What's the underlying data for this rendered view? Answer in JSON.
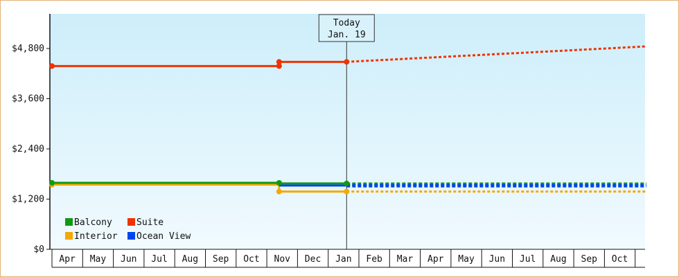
{
  "chart_data": {
    "type": "line",
    "ylim": [
      0,
      5760
    ],
    "yticks": [
      {
        "value": 0,
        "label": "$0"
      },
      {
        "value": 1200,
        "label": "$1,200"
      },
      {
        "value": 2400,
        "label": "$2,400"
      },
      {
        "value": 3600,
        "label": "$3,600"
      },
      {
        "value": 4800,
        "label": "$4,800"
      }
    ],
    "months": [
      "Apr",
      "May",
      "Jun",
      "Jul",
      "Aug",
      "Sep",
      "Oct",
      "Nov",
      "Dec",
      "Jan",
      "Feb",
      "Mar",
      "Apr",
      "May",
      "Jun",
      "Jul",
      "Aug",
      "Sep",
      "Oct"
    ],
    "today": {
      "line1": "Today",
      "line2": "Jan. 19",
      "month_index": 9.6
    },
    "grid": false,
    "legend_position": "bottom-left",
    "series": [
      {
        "name": "Balcony",
        "color": "#119911",
        "points": [
          {
            "m": 0,
            "v": 1590
          },
          {
            "m": 7.4,
            "v": 1590
          },
          {
            "m": 7.4,
            "v": 1575
          },
          {
            "m": 9.6,
            "v": 1575
          }
        ],
        "markers": [
          0,
          7.4,
          9.6
        ],
        "projection": [
          {
            "m": 9.6,
            "v": 1555
          },
          {
            "m": 19.5,
            "v": 1555
          }
        ],
        "proj_style": "thick"
      },
      {
        "name": "Suite",
        "color": "#ee3300",
        "points": [
          {
            "m": 0,
            "v": 4380
          },
          {
            "m": 7.4,
            "v": 4380
          },
          {
            "m": 7.4,
            "v": 4480
          },
          {
            "m": 9.6,
            "v": 4480
          }
        ],
        "markers": [
          0,
          7.4,
          7.4,
          9.6
        ],
        "marker_values": [
          4380,
          4380,
          4480,
          4480
        ],
        "projection": [
          {
            "m": 9.6,
            "v": 4480
          },
          {
            "m": 19.5,
            "v": 4850
          }
        ],
        "proj_style": "thin"
      },
      {
        "name": "Interior",
        "color": "#f5a800",
        "points": [
          {
            "m": 0,
            "v": 1545
          },
          {
            "m": 7.4,
            "v": 1545
          },
          {
            "m": 7.4,
            "v": 1380
          },
          {
            "m": 9.6,
            "v": 1380
          }
        ],
        "markers": [
          0,
          7.4,
          9.6
        ],
        "marker_values": [
          1545,
          1380,
          1380
        ],
        "projection": [
          {
            "m": 9.6,
            "v": 1380
          },
          {
            "m": 19.5,
            "v": 1380
          }
        ],
        "proj_style": "thin"
      },
      {
        "name": "Ocean View",
        "color": "#0044ee",
        "points": [
          {
            "m": 7.4,
            "v": 1525
          },
          {
            "m": 9.6,
            "v": 1525
          }
        ],
        "markers": [],
        "projection": [
          {
            "m": 9.6,
            "v": 1520
          },
          {
            "m": 19.5,
            "v": 1520
          }
        ],
        "proj_style": "thick"
      }
    ]
  }
}
